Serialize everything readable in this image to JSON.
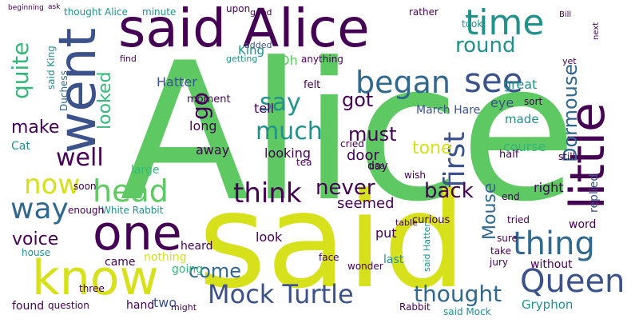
{
  "palette": {
    "purple": "#440154",
    "indigo": "#3b528b",
    "blue": "#31688e",
    "teal": "#21918c",
    "green": "#35b779",
    "lime": "#5ec962",
    "yellow": "#d6e01b"
  },
  "words": {
    "alice_big": "Alice",
    "said_big": "said",
    "said_alice": "said Alice",
    "little": "little",
    "went": "went",
    "one": "one",
    "know": "know",
    "head": "head",
    "time": "time",
    "see": "see",
    "began": "began",
    "queen": "Queen",
    "thing": "thing",
    "mock_turtle": "Mock Turtle",
    "way": "way",
    "now": "now",
    "think": "think",
    "much": "much",
    "say": "say",
    "well": "well",
    "first": "first",
    "round": "round",
    "quite": "quite",
    "dormouse": "Dormouse",
    "thought_1": "thought",
    "mouse": "Mouse",
    "never": "never",
    "back": "back",
    "must": "must",
    "go": "go",
    "got": "got",
    "looked": "looked",
    "make": "make",
    "voice": "voice",
    "come": "come",
    "tone": "tone",
    "hatter": "Hatter",
    "march_hare": "March Hare",
    "gryphon": "Gryphon",
    "king": "King",
    "oh": "Oh",
    "eye": "eye",
    "made": "made",
    "great": "great",
    "replied": "replied",
    "course": "course",
    "tell": "tell",
    "door": "door",
    "looking": "looking",
    "seemed": "seemed",
    "long": "long",
    "away": "away",
    "large": "large",
    "cat": "Cat",
    "right": "right",
    "word": "word",
    "put": "put",
    "look": "look",
    "last": "last",
    "without": "without",
    "nothing": "nothing",
    "came": "came",
    "heard": "heard",
    "going": "going",
    "found": "found",
    "hand": "hand",
    "two": "two",
    "moment": "moment",
    "day": "day",
    "duchess": "Duchess",
    "felt": "felt",
    "said_king": "said King",
    "white_rabbit": "White Rabbit",
    "thought_alice": "thought Alice",
    "minute": "minute",
    "upon": "upon",
    "good": "good",
    "rather": "rather",
    "anything": "anything",
    "getting": "getting",
    "added": "added",
    "half": "half",
    "cried": "cried",
    "wish": "wish",
    "end": "end",
    "sure": "sure",
    "take": "take",
    "jury": "jury",
    "tried": "tried",
    "question": "question",
    "might": "might",
    "face": "face",
    "wonder": "wonder",
    "curious": "curious",
    "three": "three",
    "soon": "soon",
    "enough": "enough",
    "house": "house",
    "find": "find",
    "yet": "yet",
    "took": "took",
    "sort": "sort",
    "rabbit": "Rabbit",
    "said_mock": "said Mock",
    "said_hatter": "said Hatter",
    "table": "table",
    "tea": "tea",
    "still": "still",
    "use": "use",
    "next": "next",
    "bill": "Bill",
    "ask": "ask",
    "beginning": "beginning"
  }
}
